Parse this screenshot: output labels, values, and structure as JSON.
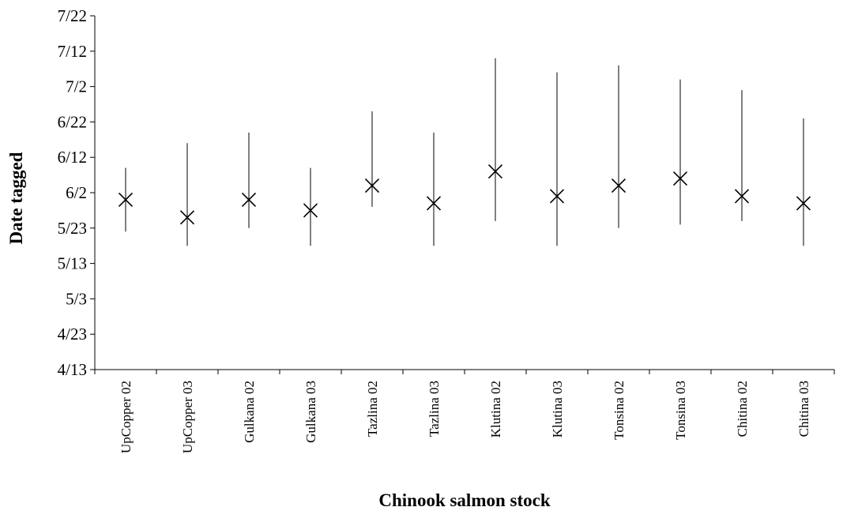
{
  "chart_data": {
    "type": "scatter",
    "xlabel": "Chinook salmon stock",
    "ylabel": "Date tagged",
    "categories": [
      "UpCopper 02",
      "UpCopper 03",
      "Gulkana 02",
      "Gulkana 03",
      "Tazlina 02",
      "Tazlina 03",
      "Klutina 02",
      "Klutina 03",
      "Tonsina 02",
      "Tonsina 03",
      "Chitina 02",
      "Chitina 03"
    ],
    "y_ticks": [
      "4/13",
      "4/23",
      "5/3",
      "5/13",
      "5/23",
      "6/2",
      "6/12",
      "6/22",
      "7/2",
      "7/12",
      "7/22"
    ],
    "ylim": [
      "4/13",
      "7/22"
    ],
    "series": [
      {
        "marker": "x",
        "mean": [
          "5/31",
          "5/26",
          "5/31",
          "5/28",
          "6/4",
          "5/30",
          "6/8",
          "6/1",
          "6/4",
          "6/6",
          "6/1",
          "5/30"
        ],
        "low": [
          "5/22",
          "5/18",
          "5/23",
          "5/18",
          "5/29",
          "5/18",
          "5/25",
          "5/18",
          "5/23",
          "5/24",
          "5/25",
          "5/18"
        ],
        "high": [
          "6/9",
          "6/16",
          "6/19",
          "6/9",
          "6/25",
          "6/19",
          "7/10",
          "7/6",
          "7/8",
          "7/4",
          "7/1",
          "6/23"
        ]
      }
    ],
    "grid": false,
    "colors": {
      "marker": "#000000",
      "axis": "#000000"
    }
  }
}
